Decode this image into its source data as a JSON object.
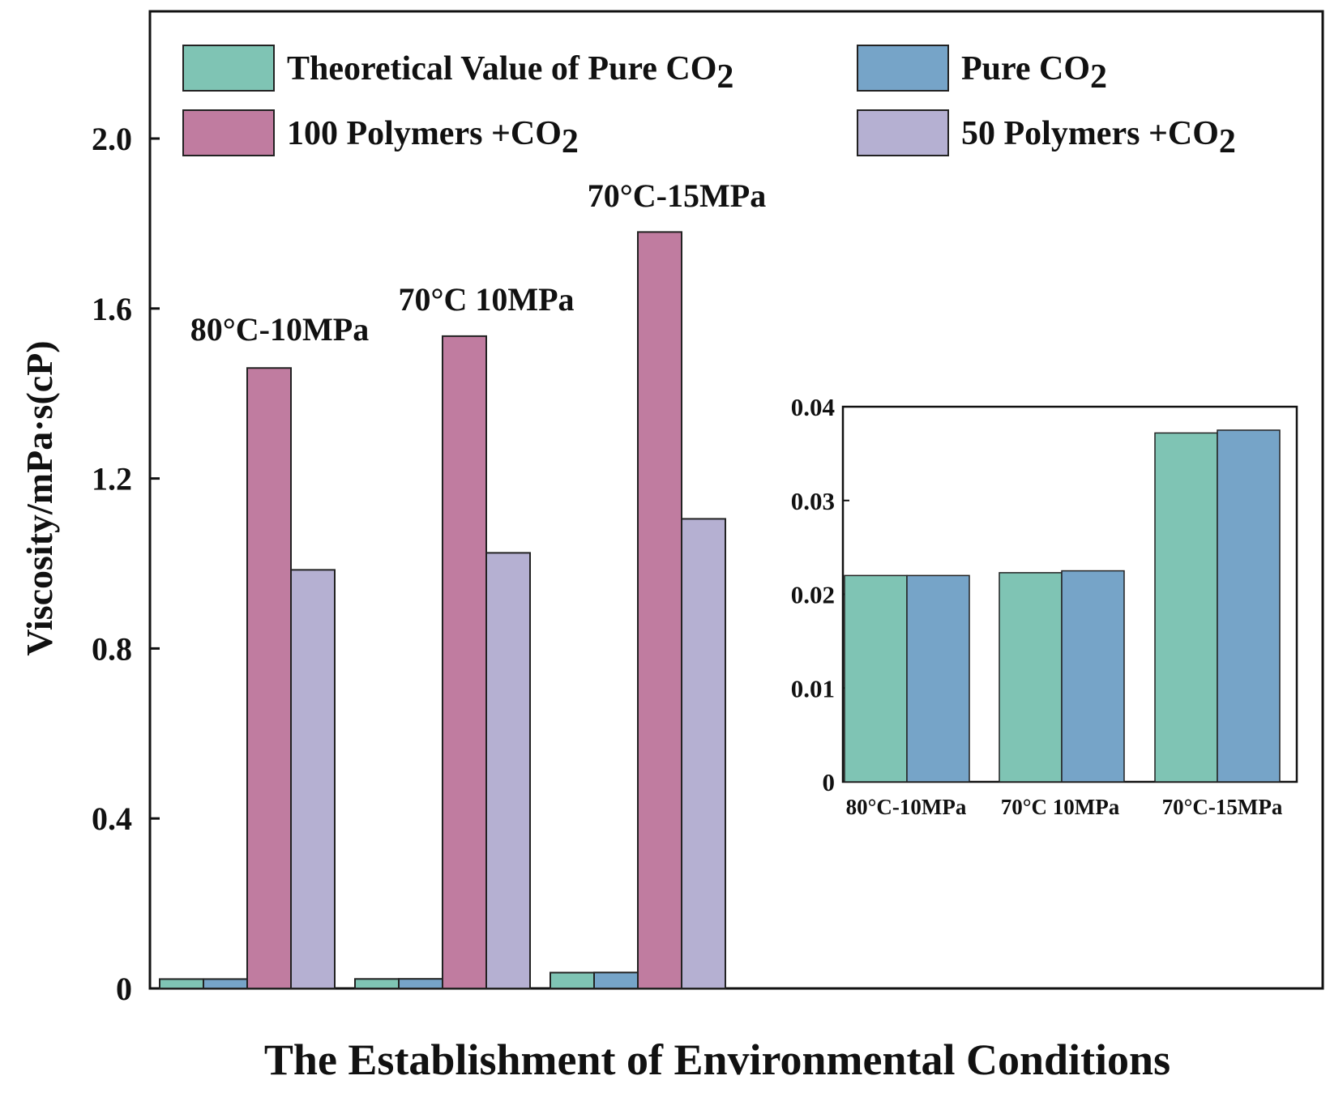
{
  "chart_data": [
    {
      "type": "bar",
      "xlabel": "The Establishment of Environmental Conditions",
      "ylabel": "Viscosity/mPa·s(cP)",
      "ylim": [
        0,
        2.3
      ],
      "yticks": [
        "0",
        "0.4",
        "0.8",
        "1.2",
        "1.6",
        "2.0"
      ],
      "ytick_values": [
        0,
        0.4,
        0.8,
        1.2,
        1.6,
        2.0
      ],
      "categories": [
        "80°C-10MPa",
        "70°C 10MPa",
        "70°C-15MPa"
      ],
      "series": [
        {
          "name": "Theoretical Value of Pure CO",
          "sub": "2",
          "color": "#7fc4b4",
          "values": [
            0.022,
            0.0223,
            0.0372
          ]
        },
        {
          "name": "Pure CO",
          "sub": "2",
          "color": "#76a4c8",
          "values": [
            0.022,
            0.0225,
            0.0375
          ]
        },
        {
          "name": "100 Polymers +CO",
          "sub": "2",
          "color": "#c07ca0",
          "values": [
            1.46,
            1.535,
            1.78
          ]
        },
        {
          "name": "50 Polymers +CO",
          "sub": "2",
          "color": "#b5b0d2",
          "values": [
            0.985,
            1.025,
            1.105
          ]
        }
      ],
      "legend_position": "top"
    },
    {
      "type": "bar",
      "role": "inset",
      "ylim": [
        0,
        0.04
      ],
      "yticks": [
        "0",
        "0.01",
        "0.02",
        "0.03",
        "0.04"
      ],
      "ytick_values": [
        0,
        0.01,
        0.02,
        0.03,
        0.04
      ],
      "categories": [
        "80°C-10MPa",
        "70°C 10MPa",
        "70°C-15MPa"
      ],
      "series": [
        {
          "name": "Theoretical Value of Pure CO2",
          "color": "#7fc4b4",
          "values": [
            0.022,
            0.0223,
            0.0372
          ]
        },
        {
          "name": "Pure CO2",
          "color": "#76a4c8",
          "values": [
            0.022,
            0.0225,
            0.0375
          ]
        }
      ]
    }
  ]
}
